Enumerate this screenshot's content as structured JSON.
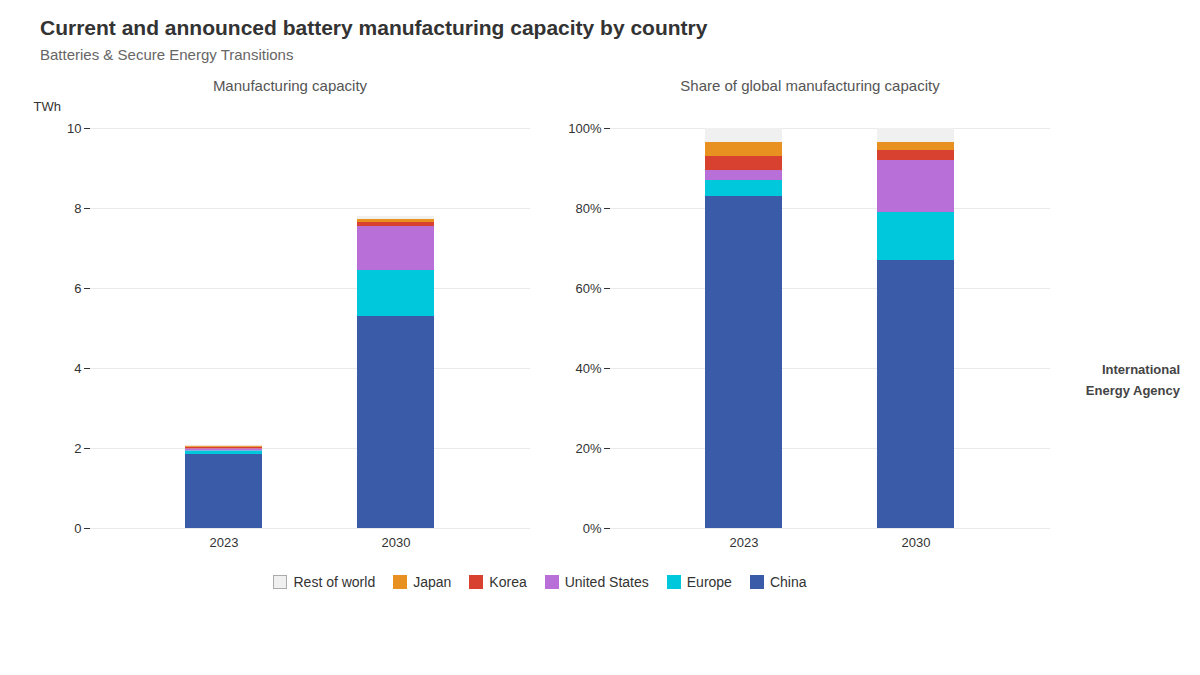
{
  "title": "Current and announced battery manufacturing capacity by country",
  "subtitle": "Batteries & Secure Energy Transitions",
  "annotations": [
    "International\nEnergy Agency"
  ],
  "chart_data": [
    {
      "type": "bar",
      "title": "Manufacturing capacity",
      "ylabel": "TWh",
      "categories": [
        "2023",
        "2030"
      ],
      "stacked": true,
      "grid": true,
      "legend": "bottom",
      "series": [
        {
          "name": "China",
          "color": "#3A5BA8",
          "values": [
            1.85,
            5.3
          ]
        },
        {
          "name": "Europe",
          "color": "#00C8DC",
          "values": [
            0.09,
            1.15
          ]
        },
        {
          "name": "United States",
          "color": "#B870D8",
          "values": [
            0.05,
            1.1
          ]
        },
        {
          "name": "Korea",
          "color": "#D84030",
          "values": [
            0.04,
            0.1
          ]
        },
        {
          "name": "Japan",
          "color": "#E89020",
          "values": [
            0.03,
            0.08
          ]
        },
        {
          "name": "Rest of world",
          "color": "#F0F0F0",
          "values": [
            0.02,
            0.07
          ]
        }
      ],
      "ylim": [
        0,
        10
      ],
      "yticks": [
        0,
        2,
        4,
        6,
        8,
        10
      ]
    },
    {
      "type": "bar",
      "title": "Share of global manufacturing capacity",
      "categories": [
        "2023",
        "2030"
      ],
      "stacked": true,
      "grid": true,
      "legend": "bottom",
      "series": [
        {
          "name": "China",
          "color": "#3A5BA8",
          "values": [
            0.83,
            0.67
          ]
        },
        {
          "name": "Europe",
          "color": "#00C8DC",
          "values": [
            0.04,
            0.12
          ]
        },
        {
          "name": "United States",
          "color": "#B870D8",
          "values": [
            0.025,
            0.13
          ]
        },
        {
          "name": "Korea",
          "color": "#D84030",
          "values": [
            0.035,
            0.025
          ]
        },
        {
          "name": "Japan",
          "color": "#E89020",
          "values": [
            0.035,
            0.02
          ]
        },
        {
          "name": "Rest of world",
          "color": "#F0F0F0",
          "values": [
            0.035,
            0.035
          ]
        }
      ],
      "ylim": [
        0,
        1.0
      ],
      "yticks": [
        {
          "value": 0.0,
          "label": "0%"
        },
        {
          "value": 0.2,
          "label": "20%"
        },
        {
          "value": 0.4,
          "label": "40%"
        },
        {
          "value": 0.6,
          "label": "60%"
        },
        {
          "value": 0.8,
          "label": "80%"
        },
        {
          "value": 1.0,
          "label": "100%"
        }
      ]
    }
  ]
}
